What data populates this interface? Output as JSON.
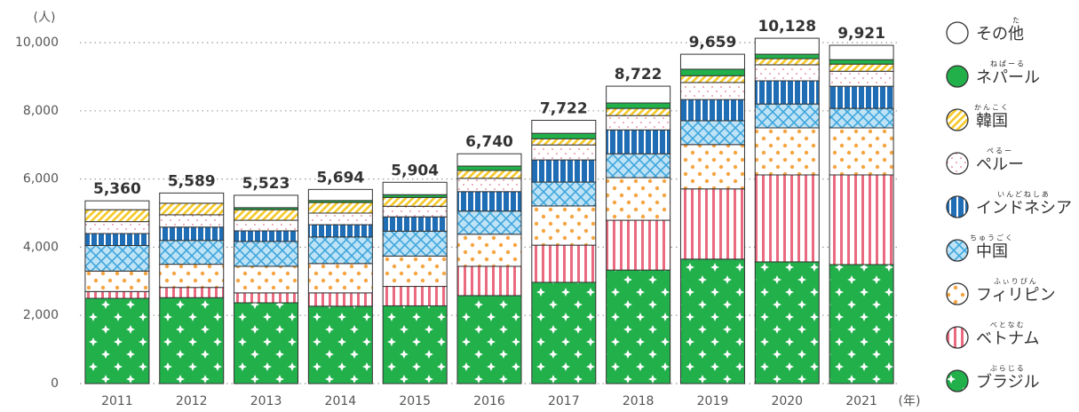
{
  "chart_data": {
    "type": "stacked-bar",
    "y_unit": "(人)",
    "x_unit": "(年)",
    "categories": [
      "2011",
      "2012",
      "2013",
      "2014",
      "2015",
      "2016",
      "2017",
      "2018",
      "2019",
      "2020",
      "2021"
    ],
    "ylim": [
      0,
      10000
    ],
    "yticks": [
      0,
      {
        "value": 2000,
        "label": "2,000"
      },
      {
        "value": 4000,
        "label": "4,000"
      },
      {
        "value": 6000,
        "label": "6,000"
      },
      {
        "value": 8000,
        "label": "8,000"
      },
      {
        "value": 10000,
        "label": "10,000"
      }
    ],
    "grid": true,
    "totals": [
      5360,
      5589,
      5523,
      5694,
      5904,
      6740,
      7722,
      8722,
      9659,
      10128,
      9921
    ],
    "total_labels": [
      "5,360",
      "5,589",
      "5,523",
      "5,694",
      "5,904",
      "6,740",
      "7,722",
      "8,722",
      "9,659",
      "10,128",
      "9,921"
    ],
    "series": [
      {
        "name": "ブラジル",
        "ruby": "ぶらじる",
        "color": "#22b04b",
        "pattern": "stars",
        "values": [
          2500,
          2520,
          2370,
          2270,
          2280,
          2580,
          2970,
          3330,
          3650,
          3570,
          3490
        ]
      },
      {
        "name": "ベトナム",
        "ruby": "べとなむ",
        "color": "#ea6a80",
        "pattern": "stripes",
        "values": [
          200,
          300,
          290,
          390,
          570,
          860,
          1090,
          1460,
          2060,
          2550,
          2630
        ]
      },
      {
        "name": "フィリピン",
        "ruby": "ふぃりぴん",
        "color": "#f5a542",
        "pattern": "dots",
        "values": [
          600,
          680,
          780,
          860,
          890,
          940,
          1150,
          1250,
          1300,
          1380,
          1380
        ]
      },
      {
        "name": "中国",
        "ruby": "ちゅうごく",
        "color": "#3ea6dc",
        "pattern": "hatch",
        "values": [
          750,
          700,
          730,
          780,
          730,
          680,
          700,
          700,
          700,
          700,
          570
        ]
      },
      {
        "name": "インドネシア",
        "ruby": "いんどねしあ",
        "color": "#1f6db5",
        "pattern": "bars",
        "values": [
          350,
          390,
          310,
          360,
          420,
          570,
          650,
          700,
          620,
          680,
          650
        ]
      },
      {
        "name": "ペルー",
        "ruby": "ぺるー",
        "color": "#e07a90",
        "pattern": "sparse-dots",
        "values": [
          350,
          360,
          310,
          340,
          310,
          390,
          440,
          420,
          500,
          470,
          440
        ]
      },
      {
        "name": "韓国",
        "ruby": "かんこく",
        "color": "#f5c928",
        "pattern": "diagonal",
        "values": [
          350,
          340,
          310,
          310,
          260,
          230,
          180,
          210,
          200,
          180,
          210
        ]
      },
      {
        "name": "ネパール",
        "ruby": "ねぱーる",
        "color": "#22b04b",
        "pattern": "solid",
        "values": [
          0,
          0,
          60,
          60,
          80,
          130,
          160,
          160,
          190,
          130,
          130
        ]
      },
      {
        "name": "その他",
        "ruby": "た",
        "color": "#ffffff",
        "pattern": "solid",
        "values": [
          260,
          299,
          363,
          324,
          364,
          360,
          382,
          492,
          439,
          468,
          421
        ]
      }
    ]
  }
}
